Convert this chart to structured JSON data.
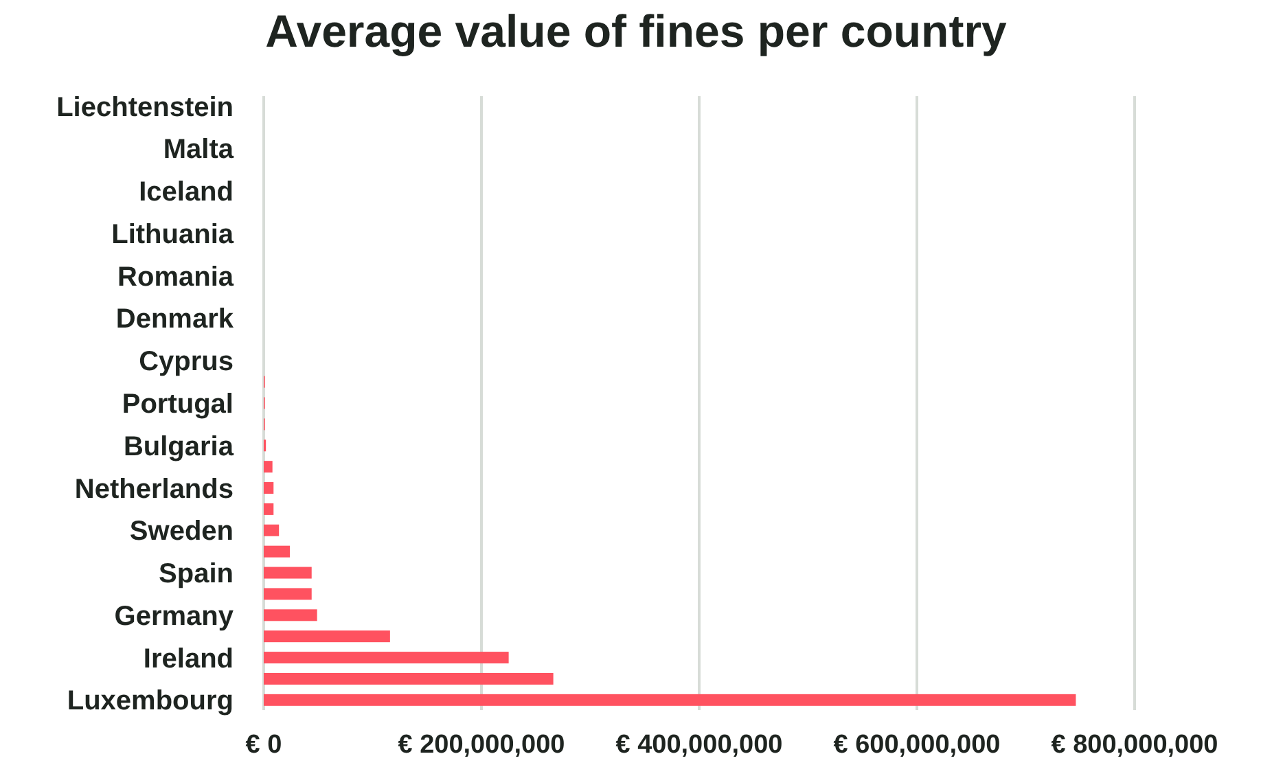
{
  "chart_data": {
    "type": "bar",
    "orientation": "horizontal",
    "title": "Average value of fines per country",
    "categories": [
      "Liechtenstein",
      null,
      "Malta",
      null,
      "Iceland",
      null,
      "Lithuania",
      null,
      "Romania",
      null,
      "Denmark",
      null,
      "Cyprus",
      null,
      "Portugal",
      null,
      "Bulgaria",
      null,
      "Netherlands",
      null,
      "Sweden",
      null,
      "Spain",
      null,
      "Germany",
      null,
      "Ireland",
      null,
      "Luxembourg"
    ],
    "values": [
      0,
      0,
      0,
      0,
      0,
      0,
      0,
      0,
      0,
      0,
      0,
      0,
      0,
      1000000,
      1000000,
      1000000,
      2000000,
      8000000,
      9000000,
      9000000,
      14000000,
      24000000,
      44000000,
      44000000,
      49000000,
      116000000,
      225000000,
      266000000,
      746000000
    ],
    "color": "#ff5260",
    "xlim": [
      0,
      800000000
    ],
    "xticks": [
      {
        "value": 0,
        "label": "€ 0"
      },
      {
        "value": 200000000,
        "label": "€ 200,000,000"
      },
      {
        "value": 400000000,
        "label": "€ 400,000,000"
      },
      {
        "value": 600000000,
        "label": "€ 600,000,000"
      },
      {
        "value": 800000000,
        "label": "€ 800,000,000"
      }
    ],
    "grid": "x"
  }
}
